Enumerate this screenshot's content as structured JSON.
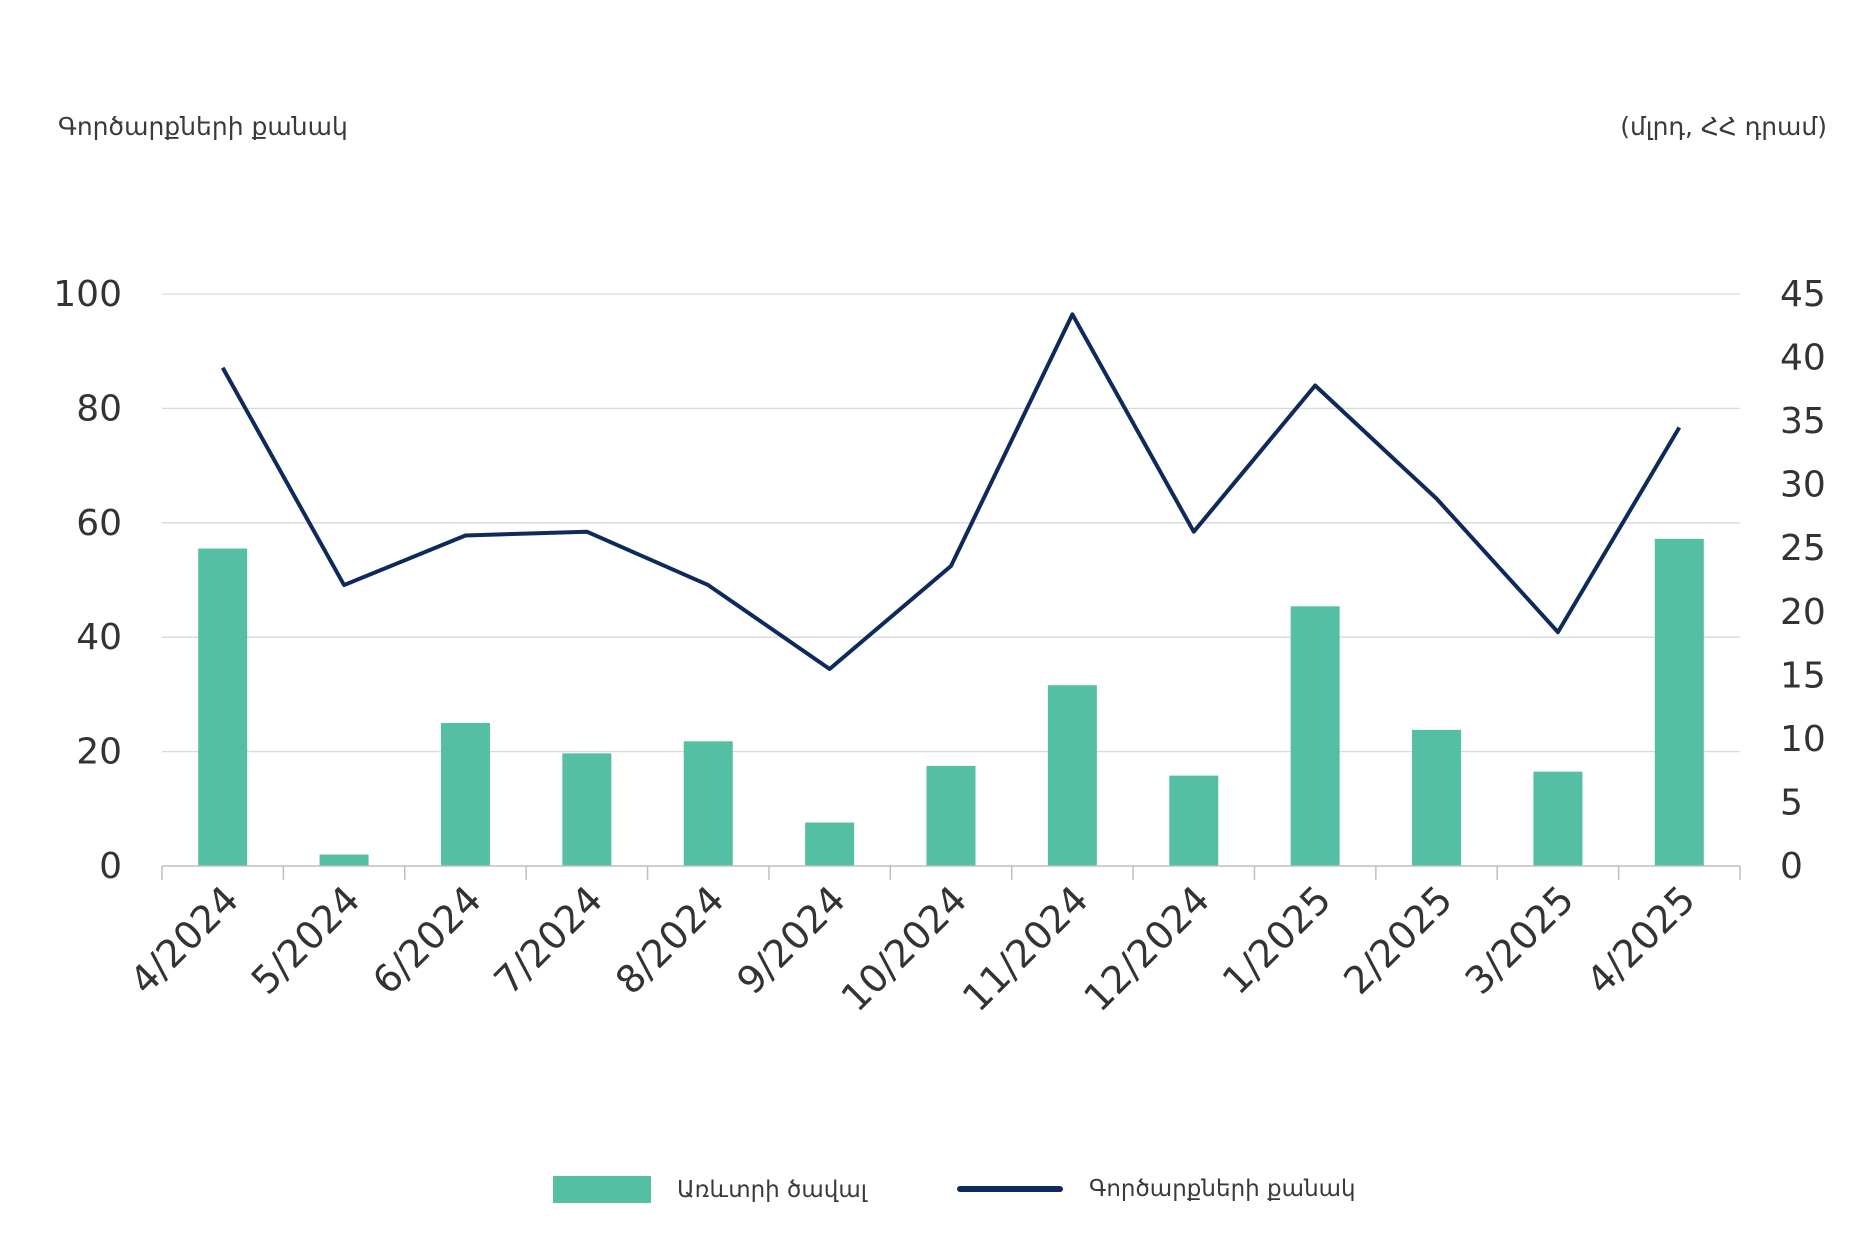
{
  "left_axis_title": "Գործարքների քանակ",
  "right_axis_title": "(մլրդ, ՀՀ դրամ)",
  "legend": {
    "bar_label": "Առևտրի ծավալ",
    "line_label": "Գործարքների քանակ"
  },
  "colors": {
    "bar": "#55bfa3",
    "line": "#0d2a5a",
    "grid": "#d9d9d9"
  },
  "chart_data": {
    "type": "bar",
    "categories": [
      "4/2024",
      "5/2024",
      "6/2024",
      "7/2024",
      "8/2024",
      "9/2024",
      "10/2024",
      "11/2024",
      "12/2024",
      "1/2025",
      "2/2025",
      "3/2025",
      "4/2025"
    ],
    "series": [
      {
        "name": "Առևտրի ծավալ",
        "type": "bar",
        "axis": "left",
        "values": [
          55.5,
          2,
          25,
          19.7,
          21.8,
          7.6,
          17.5,
          31.6,
          15.8,
          45.4,
          23.8,
          16.5,
          57.2
        ]
      },
      {
        "name": "Գործարքների քանակ",
        "type": "line",
        "axis": "right",
        "values": [
          39.2,
          22.1,
          26,
          26.3,
          22.1,
          15.5,
          23.6,
          43.4,
          26.3,
          37.8,
          28.9,
          18.4,
          34.5
        ]
      }
    ],
    "left_axis": {
      "ylim": [
        0,
        100
      ],
      "ticks": [
        0,
        20,
        40,
        60,
        80,
        100
      ]
    },
    "right_axis": {
      "ylim": [
        0,
        45
      ],
      "ticks": [
        0,
        5,
        10,
        15,
        20,
        25,
        30,
        35,
        40,
        45
      ]
    },
    "grid": true,
    "legend_position": "bottom"
  }
}
